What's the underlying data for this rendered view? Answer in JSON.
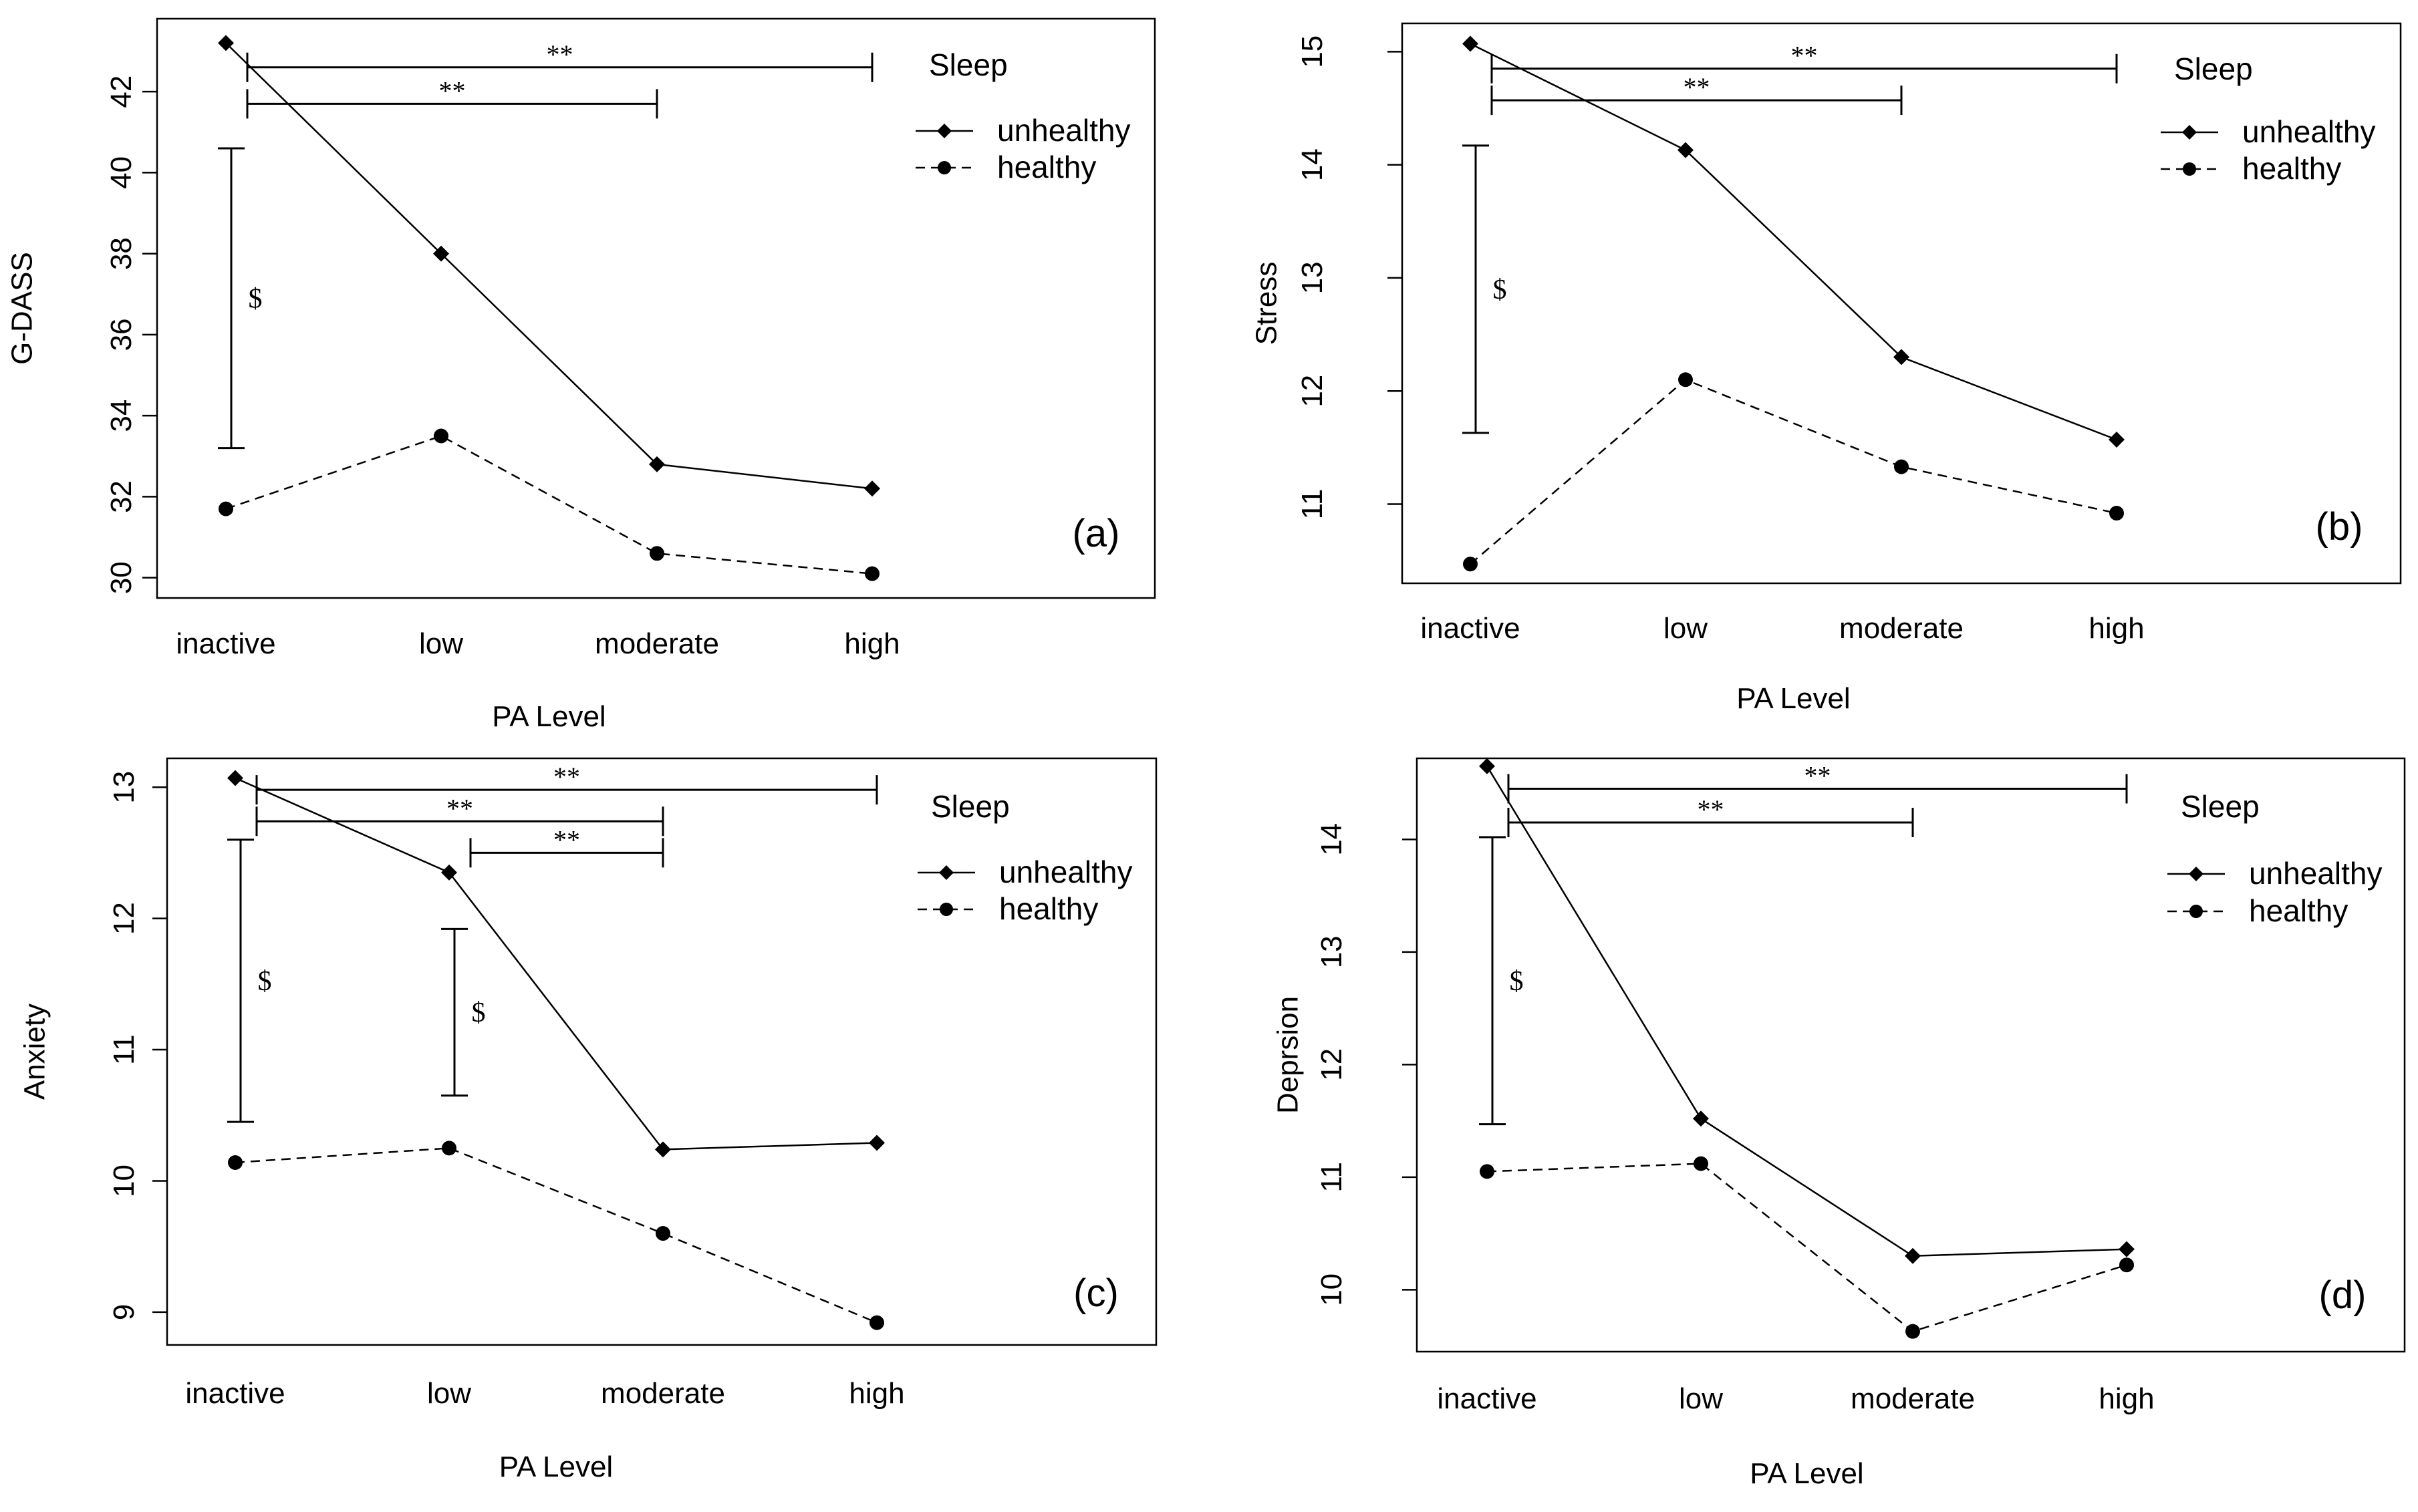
{
  "figure": {
    "legend_title": "Sleep",
    "legend_entries": [
      "unhealthy",
      "healthy"
    ],
    "xlabel": "PA Level",
    "categories": [
      "inactive",
      "low",
      "moderate",
      "high"
    ]
  },
  "chart_data": [
    {
      "type": "line",
      "panel": "(a)",
      "title": "",
      "xlabel": "PA Level",
      "ylabel": "G-DASS",
      "categories": [
        "inactive",
        "low",
        "moderate",
        "high"
      ],
      "ylim": [
        29.5,
        43.8
      ],
      "yticks": [
        30,
        32,
        34,
        36,
        38,
        40,
        42
      ],
      "legend": {
        "title": "Sleep",
        "entries": [
          "unhealthy",
          "healthy"
        ],
        "position": "top-right"
      },
      "series": [
        {
          "name": "unhealthy",
          "style": "solid",
          "marker": "diamond",
          "values": [
            43.2,
            38.0,
            32.8,
            32.2
          ]
        },
        {
          "name": "healthy",
          "style": "dashed",
          "marker": "circle",
          "values": [
            31.7,
            33.5,
            30.6,
            30.1
          ]
        }
      ],
      "annotations": [
        {
          "type": "h",
          "label": "**",
          "from": 0,
          "to": 3,
          "y": 42.6
        },
        {
          "type": "h",
          "label": "**",
          "from": 0,
          "to": 2,
          "y": 41.7
        },
        {
          "type": "v",
          "label": "$",
          "at": 0,
          "y1": 33.2,
          "y2": 40.6
        }
      ]
    },
    {
      "type": "line",
      "panel": "(b)",
      "title": "",
      "xlabel": "PA Level",
      "ylabel": "Stress",
      "categories": [
        "inactive",
        "low",
        "moderate",
        "high"
      ],
      "ylim": [
        10.3,
        15.25
      ],
      "yticks": [
        11,
        12,
        13,
        14,
        15
      ],
      "legend": {
        "title": "Sleep",
        "entries": [
          "unhealthy",
          "healthy"
        ],
        "position": "top-right"
      },
      "series": [
        {
          "name": "unhealthy",
          "style": "solid",
          "marker": "diamond",
          "values": [
            15.07,
            14.13,
            12.3,
            11.57
          ]
        },
        {
          "name": "healthy",
          "style": "dashed",
          "marker": "circle",
          "values": [
            10.47,
            12.1,
            11.33,
            10.92
          ]
        }
      ],
      "annotations": [
        {
          "type": "h",
          "label": "**",
          "from": 0,
          "to": 3,
          "y": 14.85
        },
        {
          "type": "h",
          "label": "**",
          "from": 0,
          "to": 2,
          "y": 14.57
        },
        {
          "type": "v",
          "label": "$",
          "at": 0,
          "y1": 11.63,
          "y2": 14.17
        }
      ]
    },
    {
      "type": "line",
      "panel": "(c)",
      "title": "",
      "xlabel": "PA Level",
      "ylabel": "Anxiety",
      "categories": [
        "inactive",
        "low",
        "moderate",
        "high"
      ],
      "ylim": [
        8.75,
        13.22
      ],
      "yticks": [
        9,
        10,
        11,
        12,
        13
      ],
      "legend": {
        "title": "Sleep",
        "entries": [
          "unhealthy",
          "healthy"
        ],
        "position": "top-right"
      },
      "series": [
        {
          "name": "unhealthy",
          "style": "solid",
          "marker": "diamond",
          "values": [
            13.07,
            12.35,
            10.24,
            10.29
          ]
        },
        {
          "name": "healthy",
          "style": "dashed",
          "marker": "circle",
          "values": [
            10.14,
            10.25,
            9.6,
            8.92
          ]
        }
      ],
      "annotations": [
        {
          "type": "h",
          "label": "**",
          "from": 0,
          "to": 3,
          "y": 12.98
        },
        {
          "type": "h",
          "label": "**",
          "from": 0,
          "to": 2,
          "y": 12.74
        },
        {
          "type": "h",
          "label": "**",
          "from": 1,
          "to": 2,
          "y": 12.5
        },
        {
          "type": "v",
          "label": "$",
          "at": 0,
          "y1": 10.45,
          "y2": 12.6
        },
        {
          "type": "v",
          "label": "$",
          "at": 1,
          "y1": 10.65,
          "y2": 11.92
        }
      ]
    },
    {
      "type": "line",
      "panel": "(d)",
      "title": "",
      "xlabel": "PA Level",
      "ylabel": "Deprsion",
      "categories": [
        "inactive",
        "low",
        "moderate",
        "high"
      ],
      "ylim": [
        9.45,
        14.72
      ],
      "yticks": [
        10,
        11,
        12,
        13,
        14
      ],
      "legend": {
        "title": "Sleep",
        "entries": [
          "unhealthy",
          "healthy"
        ],
        "position": "top-right"
      },
      "series": [
        {
          "name": "unhealthy",
          "style": "solid",
          "marker": "diamond",
          "values": [
            14.65,
            11.52,
            10.3,
            10.36
          ]
        },
        {
          "name": "healthy",
          "style": "dashed",
          "marker": "circle",
          "values": [
            11.05,
            11.12,
            9.63,
            10.22
          ]
        }
      ],
      "annotations": [
        {
          "type": "h",
          "label": "**",
          "from": 0,
          "to": 3,
          "y": 14.45
        },
        {
          "type": "h",
          "label": "**",
          "from": 0,
          "to": 2,
          "y": 14.15
        },
        {
          "type": "v",
          "label": "$",
          "at": 0,
          "y1": 11.47,
          "y2": 14.02
        }
      ]
    }
  ]
}
